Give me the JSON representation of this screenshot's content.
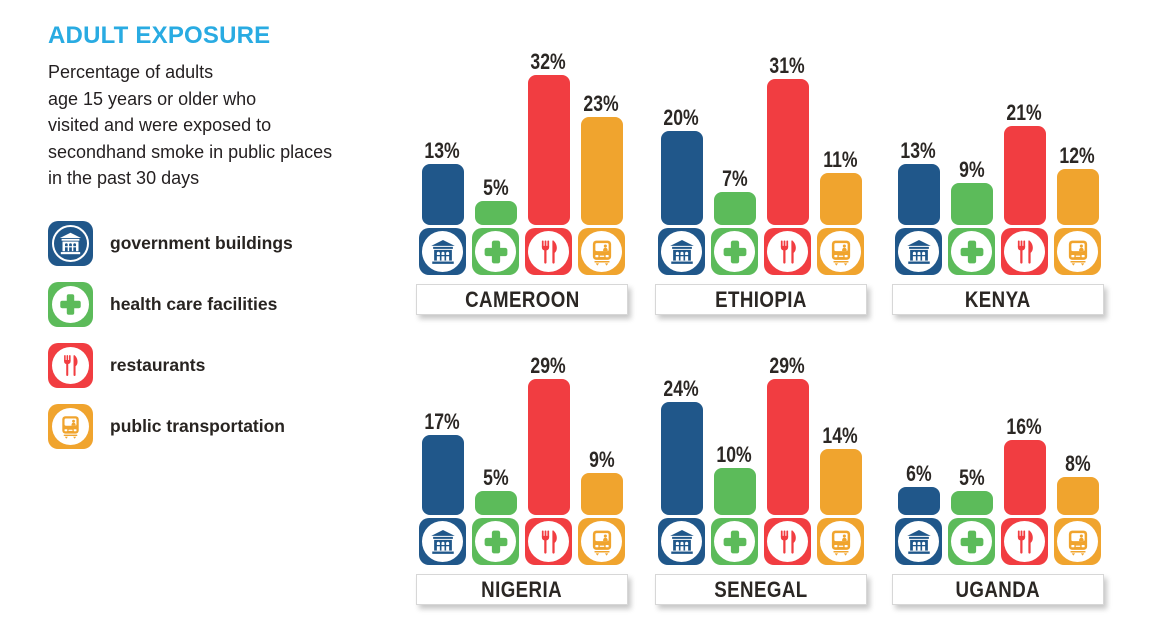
{
  "title": "ADULT EXPOSURE",
  "subtitle": "Percentage of adults\nage 15 years or older who\nvisited and were exposed to\nsecondhand smoke in public places\nin the past 30 days",
  "colors": {
    "title_accent": "#29ABE2",
    "government_blue": "#20578A",
    "health_green": "#5CBB5A",
    "restaurant_red": "#F13D41",
    "transport_orange": "#F0A42E",
    "text_dark": "#2B2724"
  },
  "legend_items": [
    {
      "id": "government-buildings",
      "label": "government buildings",
      "icon": "government-building-icon",
      "color": "#20578A",
      "style": "inverse"
    },
    {
      "id": "health-care-facilities",
      "label": "health care facilities",
      "icon": "health-cross-icon",
      "color": "#5CBB5A",
      "style": "normal"
    },
    {
      "id": "restaurants",
      "label": "restaurants",
      "icon": "restaurant-utensils-icon",
      "color": "#F13D41",
      "style": "normal"
    },
    {
      "id": "public-transportation",
      "label": "public transportation",
      "icon": "public-transport-icon",
      "color": "#F0A42E",
      "style": "normal"
    }
  ],
  "chart_data": {
    "type": "bar",
    "title": "ADULT EXPOSURE",
    "subtitle": "Percentage of adults age 15 years or older who visited and were exposed to secondhand smoke in public places in the past 30 days",
    "unit": "%",
    "categories": [
      "government buildings",
      "health care facilities",
      "restaurants",
      "public transportation"
    ],
    "category_icons": [
      "government-building-icon",
      "health-cross-icon",
      "restaurant-utensils-icon",
      "public-transport-icon"
    ],
    "series_colors": [
      "#20578A",
      "#5CBB5A",
      "#F13D41",
      "#F0A42E"
    ],
    "ylim": [
      0,
      32
    ],
    "grid": false,
    "legend_position": "left",
    "value_label_suffix": "%",
    "charts": [
      {
        "country": "CAMEROON",
        "values": [
          13,
          5,
          32,
          23
        ]
      },
      {
        "country": "ETHIOPIA",
        "values": [
          20,
          7,
          31,
          11
        ]
      },
      {
        "country": "KENYA",
        "values": [
          13,
          9,
          21,
          12
        ]
      },
      {
        "country": "NIGERIA",
        "values": [
          17,
          5,
          29,
          9
        ]
      },
      {
        "country": "SENEGAL",
        "values": [
          24,
          10,
          29,
          14
        ]
      },
      {
        "country": "UGANDA",
        "values": [
          6,
          5,
          16,
          8
        ]
      }
    ]
  }
}
